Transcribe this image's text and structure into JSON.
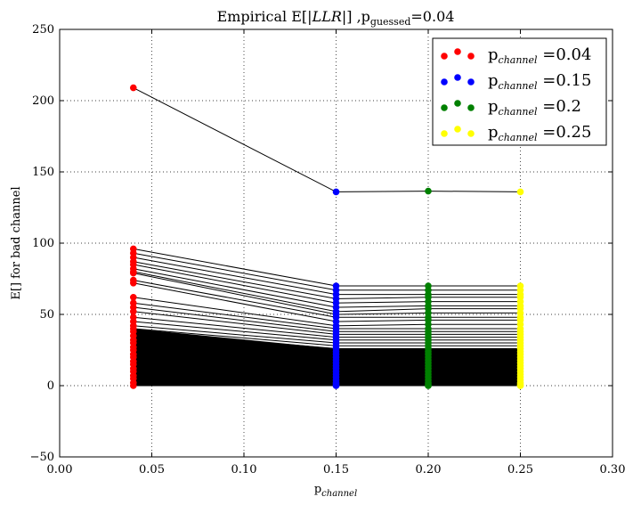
{
  "chart_data": {
    "type": "scatter",
    "title": {
      "main": "Empirical E[",
      "italic": "|LLR|",
      "rest": "] ,p",
      "sub": "guessed",
      "tail": "=0.04"
    },
    "xlabel": {
      "main": "p",
      "sub": "channel"
    },
    "ylabel": "E[] for bad channel",
    "xlim": [
      0.0,
      0.3
    ],
    "ylim": [
      -50,
      250
    ],
    "xticks": [
      0.0,
      0.05,
      0.1,
      0.15,
      0.2,
      0.25,
      0.3
    ],
    "xtick_labels": [
      "0.00",
      "0.05",
      "0.10",
      "0.15",
      "0.20",
      "0.25",
      "0.30"
    ],
    "yticks": [
      -50,
      0,
      50,
      100,
      150,
      200,
      250
    ],
    "ytick_labels": [
      "−50",
      "0",
      "50",
      "100",
      "150",
      "200",
      "250"
    ],
    "grid": true,
    "legend_position": "top-right",
    "x": [
      0.04,
      0.15,
      0.2,
      0.25
    ],
    "series": [
      {
        "name": "p_channel =0.04",
        "legend_main": "p",
        "legend_sub": "channel",
        "legend_tail": " =0.04",
        "color": "#ff0000"
      },
      {
        "name": "p_channel =0.15",
        "legend_main": "p",
        "legend_sub": "channel",
        "legend_tail": " =0.15",
        "color": "#0000ff"
      },
      {
        "name": "p_channel =0.2",
        "legend_main": "p",
        "legend_sub": "channel",
        "legend_tail": " =0.2",
        "color": "#008000"
      },
      {
        "name": "p_channel =0.25",
        "legend_main": "p",
        "legend_sub": "channel",
        "legend_tail": " =0.25",
        "color": "#ffff00"
      }
    ],
    "lines": [
      [
        209,
        136,
        136.5,
        136
      ],
      [
        96,
        70,
        70,
        70
      ],
      [
        93,
        67,
        67,
        67
      ],
      [
        90,
        64,
        64,
        64
      ],
      [
        87,
        61,
        62,
        62
      ],
      [
        85,
        58,
        59,
        59
      ],
      [
        82,
        55,
        56,
        56
      ],
      [
        80,
        52,
        54,
        54
      ],
      [
        79,
        50,
        51,
        51
      ],
      [
        74,
        48,
        48,
        48
      ],
      [
        72,
        45,
        46,
        46
      ],
      [
        62,
        42,
        43,
        43
      ],
      [
        58,
        40,
        40,
        40
      ],
      [
        55,
        38,
        38,
        38
      ],
      [
        52,
        36,
        36,
        36
      ],
      [
        48,
        34,
        34,
        34
      ],
      [
        45,
        32,
        32,
        32
      ],
      [
        42,
        30,
        30,
        30
      ],
      [
        40,
        28,
        28,
        28
      ],
      [
        38,
        26,
        26,
        26
      ],
      [
        35,
        24,
        24,
        24
      ],
      [
        32,
        22,
        22,
        22
      ],
      [
        30,
        20,
        20,
        20
      ],
      [
        27,
        18,
        18,
        18
      ],
      [
        25,
        16,
        16,
        16
      ],
      [
        22,
        14,
        14,
        14
      ],
      [
        20,
        12,
        12,
        12
      ],
      [
        17,
        10,
        10,
        10
      ],
      [
        15,
        8,
        8,
        8
      ],
      [
        12,
        6,
        6,
        6
      ],
      [
        10,
        4,
        4,
        4
      ],
      [
        7,
        2,
        2,
        2
      ],
      [
        5,
        1,
        1,
        1
      ],
      [
        2,
        0,
        0,
        0
      ],
      [
        0,
        0,
        0,
        0
      ]
    ]
  }
}
